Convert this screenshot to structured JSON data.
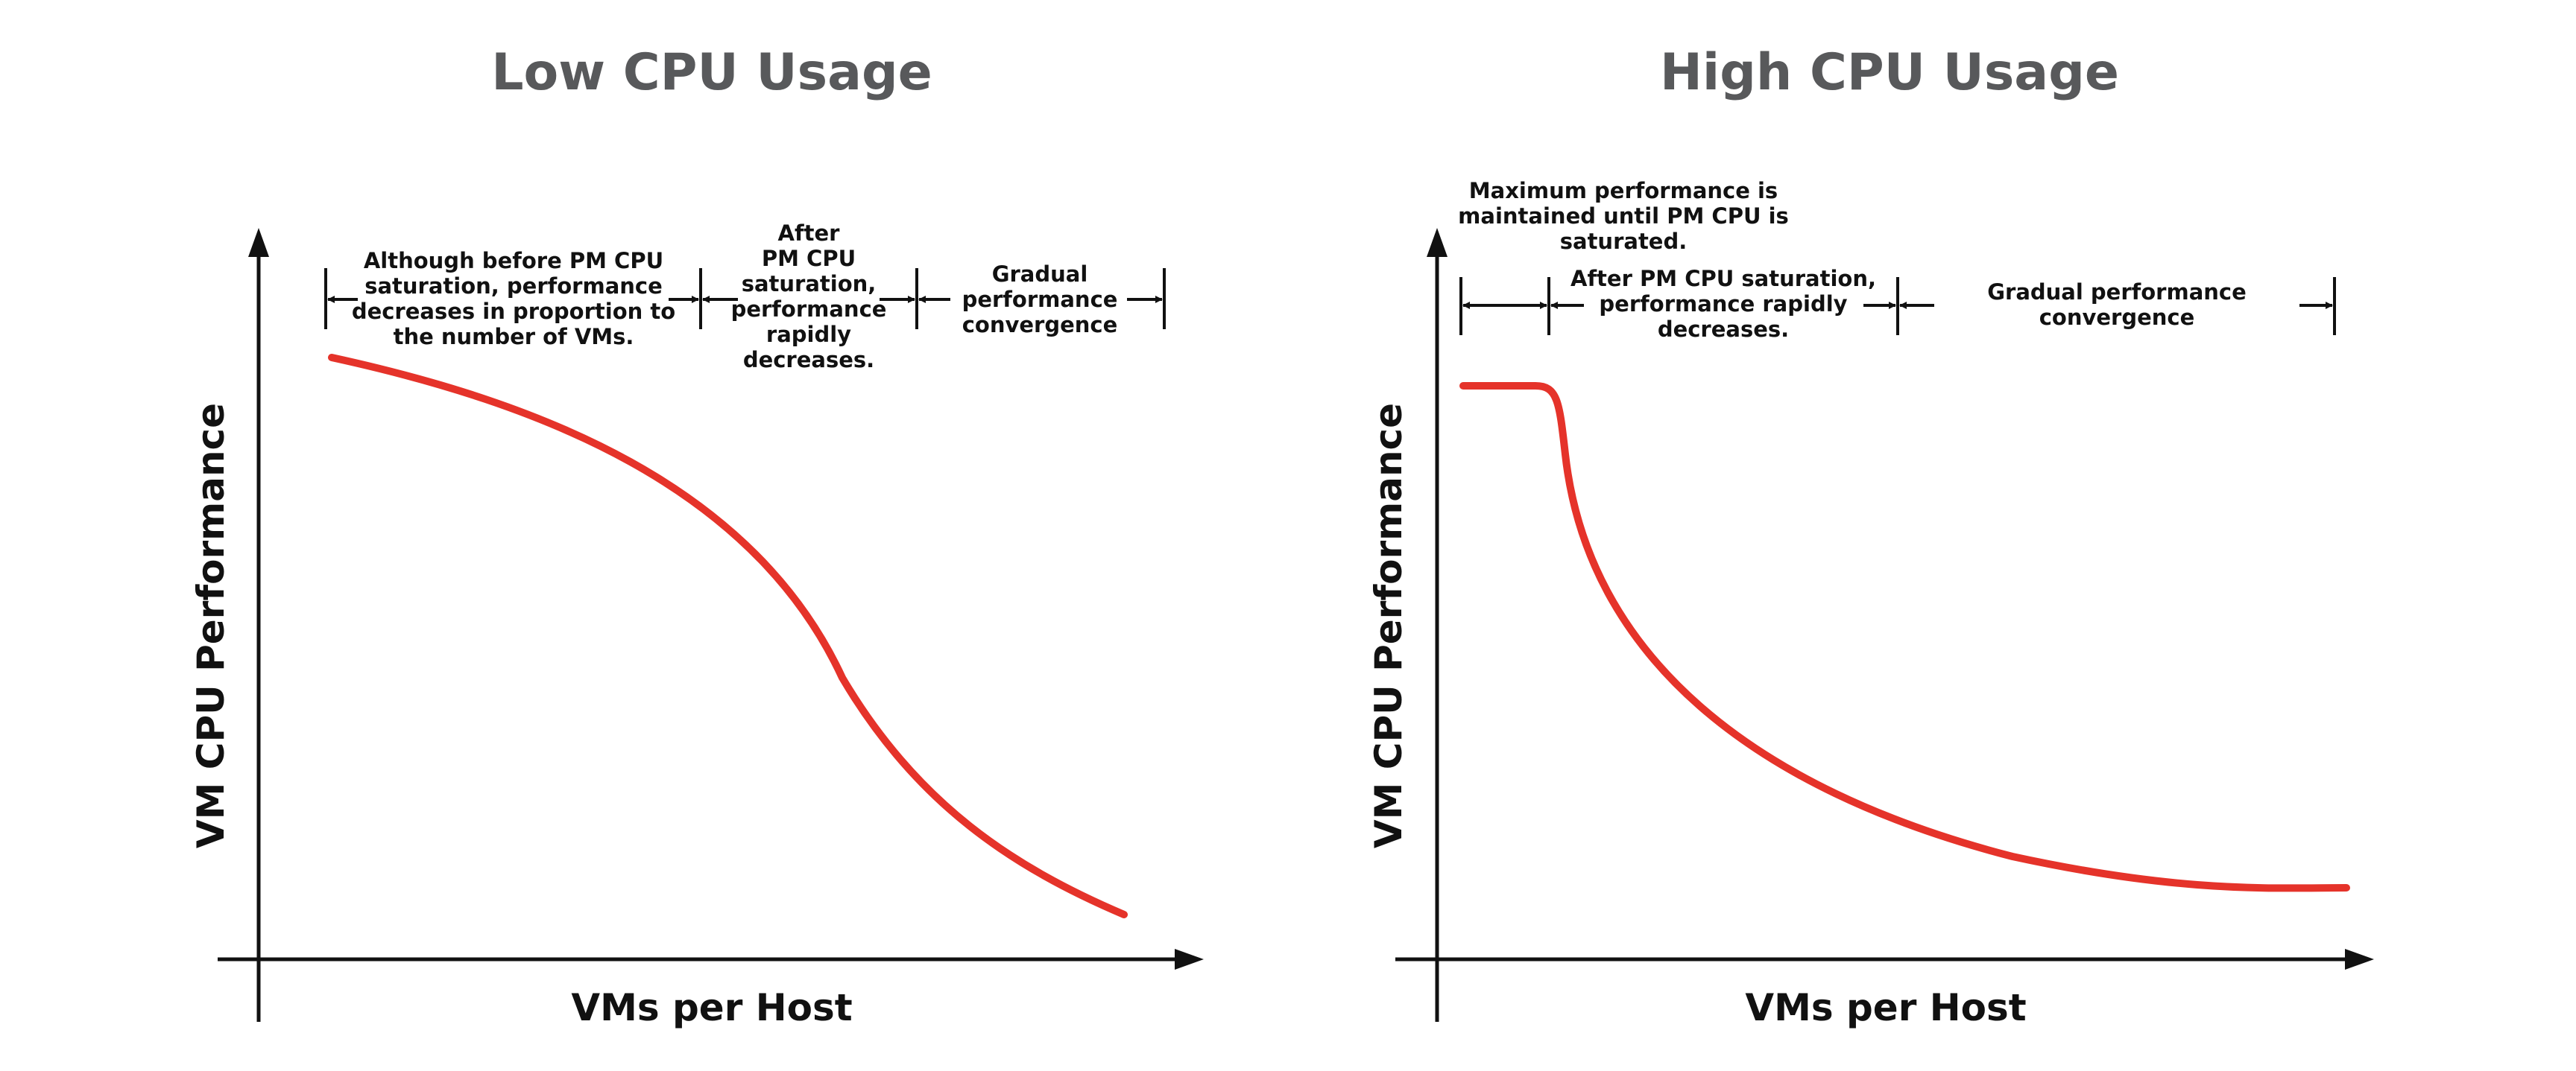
{
  "colors": {
    "curve": "#e5332a",
    "axis": "#111111",
    "title": "#58595b"
  },
  "panels": [
    {
      "title": "Low CPU Usage",
      "x_axis_label": "VMs per Host",
      "y_axis_label": "VM CPU Performance",
      "annotations": [
        "Although before PM CPU saturation, performance decreases in proportion to the number of VMs.",
        "After PM CPU saturation, performance rapidly decreases.",
        "Gradual performance convergence"
      ]
    },
    {
      "title": "High CPU Usage",
      "x_axis_label": "VMs per Host",
      "y_axis_label": "VM CPU Performance",
      "annotations": [
        "Maximum performance is maintained until PM CPU is saturated.",
        "After PM CPU saturation, performance rapidly decreases.",
        "Gradual performance convergence"
      ]
    }
  ]
}
